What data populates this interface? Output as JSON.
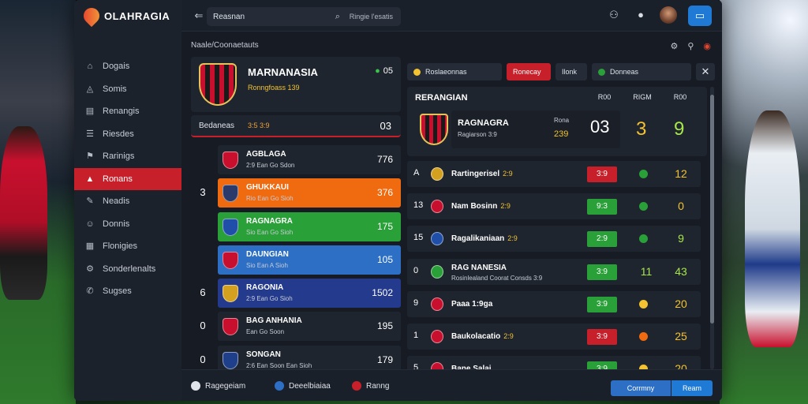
{
  "colors": {
    "accent": "#c8202a",
    "primary": "#1f7ad6",
    "orange": "#f06a10",
    "green": "#2aa038",
    "blue": "#2c6fc4",
    "navy": "#243a8c",
    "gold": "#f2c230"
  },
  "app": {
    "title": "OLAHRAGIA"
  },
  "sidebar": {
    "items": [
      {
        "label": "Dogais",
        "icon": "home-icon",
        "active": false
      },
      {
        "label": "Somis",
        "icon": "sports-icon",
        "active": false
      },
      {
        "label": "Renangis",
        "icon": "rankings-icon",
        "active": false
      },
      {
        "label": "Riesdes",
        "icon": "results-icon",
        "active": false
      },
      {
        "label": "Rarinigs",
        "icon": "fixtures-icon",
        "active": false
      },
      {
        "label": "Ronans",
        "icon": "teams-icon",
        "active": true
      },
      {
        "label": "Neadis",
        "icon": "news-icon",
        "active": false
      },
      {
        "label": "Donnis",
        "icon": "players-icon",
        "active": false
      },
      {
        "label": "Flonigies",
        "icon": "stats-icon",
        "active": false
      },
      {
        "label": "Sonderlenalts",
        "icon": "settings-icon",
        "active": false
      },
      {
        "label": "Sugses",
        "icon": "support-icon",
        "active": false
      }
    ]
  },
  "topbar": {
    "search_left": "Reasnan",
    "search_right": "Ringie l'esatis",
    "icons": [
      "users-icon",
      "notification-icon"
    ]
  },
  "left_panel": {
    "title": "Naale/Coonaetauts",
    "hero": {
      "name": "MARNANASIA",
      "sub": "Ronngfoass 139",
      "score": "05"
    },
    "selector": {
      "label": "Bedaneas",
      "tag": "3:5 3:9",
      "value": "03"
    },
    "teams": [
      {
        "rank": "",
        "name": "AGBLAGA",
        "sub": "2:9 Ean Go Sdon",
        "value": "776",
        "bg": "#1f252f",
        "badge": "#c8102e"
      },
      {
        "rank": "3",
        "name": "GHUKKAUI",
        "sub": "Rio Ean Go Sioh",
        "value": "376",
        "bg": "#f06a10",
        "badge": "#2a3a6a"
      },
      {
        "rank": "",
        "name": "RAGNAGRA",
        "sub": "Sio Ean Go Sioh",
        "value": "175",
        "bg": "#2aa038",
        "badge": "#1f4fa8"
      },
      {
        "rank": "",
        "name": "DAUNGIAN",
        "sub": "Sio Ean A Sioh",
        "value": "105",
        "bg": "#2c6fc4",
        "badge": "#c8102e"
      },
      {
        "rank": "6",
        "name": "RAGONIA",
        "sub": "2:9 Ean Go Sioh",
        "value": "1502",
        "bg": "#243a8c",
        "badge": "#d4a020"
      },
      {
        "rank": "0",
        "name": "BAG ANHANIA",
        "sub": "Ean Go Soon",
        "value": "195",
        "bg": "#1f252f",
        "badge": "#c8102e"
      },
      {
        "rank": "0",
        "name": "SONGAN",
        "sub": "2:6 Ean Soon Ean Sioh",
        "value": "179",
        "bg": "#1f252f",
        "badge": "#1f3f8a"
      }
    ]
  },
  "right_panel": {
    "tabs": [
      {
        "label": "Roslaeonnas",
        "dot": "#f2c230",
        "active": false
      },
      {
        "label": "Ronecay",
        "dot": "",
        "active": true
      },
      {
        "label": "Ilonk",
        "dot": "",
        "active": false
      },
      {
        "label": "Donneas",
        "dot": "#2aa038",
        "active": false
      }
    ],
    "standings": {
      "title": "RERANGIAN",
      "cols": [
        "R00",
        "RIGM",
        "R00"
      ],
      "name": "RAGNAGRA",
      "sub": "Ragiarson 3:9",
      "mini": "Rona",
      "green": "239",
      "big": "03",
      "v1": "3",
      "v2": "9"
    },
    "matches": [
      {
        "rank": "A",
        "name": "Rartingerisel",
        "score": "2:9",
        "sub": "",
        "box": "3:9",
        "box_color": "#c8202a",
        "dot": "#2aa038",
        "val": "12",
        "val_color": "#f2c230",
        "badge": "#d4a020"
      },
      {
        "rank": "13",
        "name": "Nam Bosinn",
        "score": "2:9",
        "sub": "",
        "box": "9:3",
        "box_color": "#2aa038",
        "dot": "#2aa038",
        "val": "0",
        "val_color": "#f2c230",
        "badge": "#c8102e"
      },
      {
        "rank": "15",
        "name": "Ragalikaniaan",
        "score": "2:9",
        "sub": "",
        "box": "2:9",
        "box_color": "#2aa038",
        "dot": "#2aa038",
        "val": "9",
        "val_color": "#a6e64a",
        "badge": "#1f4fa8"
      },
      {
        "rank": "0",
        "name": "RAG NANESIA",
        "score": "",
        "sub": "Rosinlealand Coorat Consds 3:9",
        "box": "3:9",
        "box_color": "#2aa038",
        "dot": "",
        "val": "11",
        "extra": "43",
        "val_color": "#a6e64a",
        "badge": "#2aa038"
      },
      {
        "rank": "9",
        "name": "Paaa 1:9ga",
        "score": "",
        "sub": "",
        "box": "3:9",
        "box_color": "#2aa038",
        "dot": "#f2c230",
        "val": "20",
        "val_color": "#f2c230",
        "badge": "#c8102e"
      },
      {
        "rank": "1",
        "name": "Baukolacatio",
        "score": "2:9",
        "sub": "",
        "box": "3:9",
        "box_color": "#c8202a",
        "dot": "#f06a10",
        "val": "25",
        "val_color": "#f2c230",
        "badge": "#c8102e"
      },
      {
        "rank": "5",
        "name": "Bane Salai",
        "score": "",
        "sub": "",
        "box": "3:9",
        "box_color": "#2aa038",
        "dot": "#f2c230",
        "val": "20",
        "val_color": "#f2c230",
        "badge": "#c8102e"
      }
    ]
  },
  "bottom": {
    "items": [
      {
        "label": "Ragegeiam",
        "dot": "#dfe3ea"
      },
      {
        "label": "Deeelbiaiaa",
        "dot": "#2c6fc4"
      },
      {
        "label": "Ranng",
        "dot": "#c8202a"
      }
    ],
    "btn1": "Corrmny",
    "btn2": "Ream"
  }
}
